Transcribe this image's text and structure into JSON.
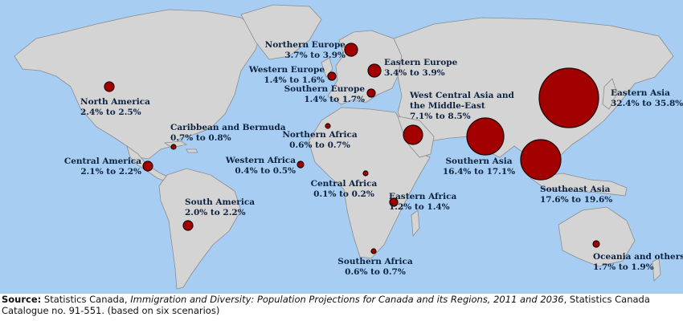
{
  "map": {
    "colors": {
      "ocean": "#a8cdf2",
      "land": "#d4d4d4",
      "border": "#8c8c8c",
      "bubble": "#a30000",
      "label": "#0d2340"
    },
    "regions": [
      {
        "id": "north-america",
        "name": "North America",
        "range": "2.4% to 2.5%"
      },
      {
        "id": "caribbean-and-bermuda",
        "name": "Caribbean and Bermuda",
        "range": "0.7% to 0.8%"
      },
      {
        "id": "central-america",
        "name": "Central America",
        "range": "2.1% to 2.2%"
      },
      {
        "id": "south-america",
        "name": "South America",
        "range": "2.0% to 2.2%"
      },
      {
        "id": "northern-europe",
        "name": "Northern Europe",
        "range": "3.7% to 3.9%"
      },
      {
        "id": "western-europe",
        "name": "Western Europe",
        "range": "1.4% to 1.6%"
      },
      {
        "id": "southern-europe",
        "name": "Southern Europe",
        "range": "1.4% to 1.7%"
      },
      {
        "id": "eastern-europe",
        "name": "Eastern Europe",
        "range": "3.4% to 3.9%"
      },
      {
        "id": "northern-africa",
        "name": "Northern Africa",
        "range": "0.6% to 0.7%"
      },
      {
        "id": "western-africa",
        "name": "Western Africa",
        "range": "0.4% to 0.5%"
      },
      {
        "id": "central-africa",
        "name": "Central Africa",
        "range": "0.1% to 0.2%"
      },
      {
        "id": "eastern-africa",
        "name": "Eastern Africa",
        "range": "1.2% to 1.4%"
      },
      {
        "id": "southern-africa",
        "name": "Southern Africa",
        "range": "0.6% to 0.7%"
      },
      {
        "id": "west-central-asia-and-the-middle-east",
        "name": "West Central Asia and the Middle-East",
        "name_lines": [
          "West Central Asia and",
          "the Middle-East"
        ],
        "range": "7.1% to 8.5%"
      },
      {
        "id": "southern-asia",
        "name": "Southern Asia",
        "range": "16.4% to 17.1%"
      },
      {
        "id": "eastern-asia",
        "name": "Eastern Asia",
        "range": "32.4% to 35.8%"
      },
      {
        "id": "southeast-asia",
        "name": "Southeast Asia",
        "range": "17.6% to 19.6%"
      },
      {
        "id": "oceania-and-others",
        "name": "Oceania and others",
        "range": "1.7% to 1.9%"
      }
    ]
  },
  "source": {
    "label": "Source:",
    "publisher": "Statistics Canada,",
    "title": "Immigration and Diversity: Population Projections for Canada and its Regions, 2011 and 2036",
    "rest": ", Statistics Canada Catalogue no. 91-551. (based on six scenarios)"
  }
}
